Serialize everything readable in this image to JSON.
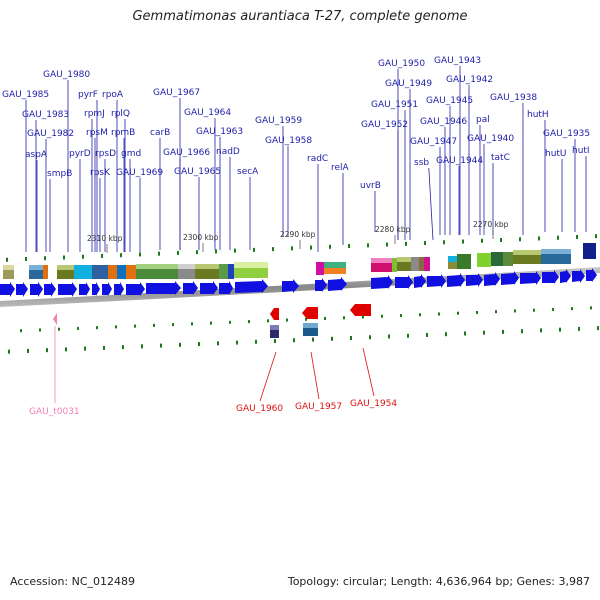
{
  "title": "Gemmatimonas aurantiaca T-27, complete genome",
  "footer": {
    "accession": "Accession: NC_012489",
    "summary": "Topology: circular; Length: 4,636,964 bp; Genes: 3,987"
  },
  "kbp_labels": [
    "2310 kbp",
    "2300 kbp",
    "2290 kbp",
    "2280 kbp",
    "2270 kbp"
  ],
  "genes_top": [
    "GAU_1985",
    "GAU_1980",
    "GAU_1983",
    "GAU_1982",
    "aspA",
    "smpB",
    "pyrF",
    "rpoA",
    "rpmJ",
    "rplQ",
    "rpsM",
    "rpmB",
    "pyrD",
    "rpsD",
    "gmd",
    "rpsK",
    "GAU_1969",
    "carB",
    "GAU_1967",
    "GAU_1966",
    "GAU_1964",
    "GAU_1963",
    "GAU_1965",
    "nadD",
    "secA",
    "GAU_1959",
    "GAU_1958",
    "radC",
    "relA",
    "uvrB",
    "GAU_1950",
    "GAU_1943",
    "GAU_1949",
    "GAU_1942",
    "GAU_1951",
    "GAU_1945",
    "GAU_1938",
    "GAU_1952",
    "GAU_1946",
    "pal",
    "GAU_1947",
    "GAU_1940",
    "ssb",
    "GAU_1944",
    "tatC",
    "hutH",
    "GAU_1935",
    "hutU",
    "hutI"
  ],
  "genes_bottom": [
    "GAU_1960",
    "GAU_1957",
    "GAU_1954"
  ],
  "genes_pink": [
    "GAU_t0031"
  ],
  "colors": {
    "forward_gene": "#1010e0",
    "reverse_gene": "#e00000",
    "top_label": "#2222aa",
    "bottom_label": "#dd1111",
    "rna_label": "#f080b0",
    "tick": "#1a7a1a",
    "backbone": "#888888"
  }
}
